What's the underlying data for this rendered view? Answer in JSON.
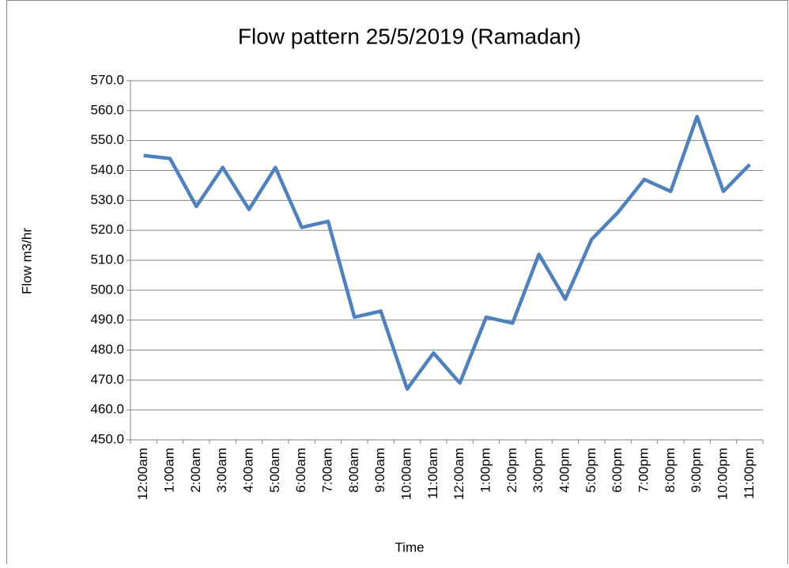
{
  "chart_data": {
    "type": "line",
    "title": "Flow pattern 25/5/2019 (Ramadan)",
    "x_label": "Time",
    "y_label": "Flow m3/hr",
    "categories": [
      "12:00am",
      "1:00am",
      "2:00am",
      "3:00am",
      "4:00am",
      "5:00am",
      "6:00am",
      "7:00am",
      "8:00am",
      "9:00am",
      "10:00am",
      "11:00am",
      "12:00am",
      "1:00pm",
      "2:00pm",
      "3:00pm",
      "4:00pm",
      "5:00pm",
      "6:00pm",
      "7:00pm",
      "8:00pm",
      "9:00pm",
      "10:00pm",
      "11:00pm"
    ],
    "values": [
      545,
      544,
      528,
      541,
      527,
      541,
      521,
      523,
      491,
      493,
      467,
      479,
      469,
      491,
      489,
      512,
      497,
      517,
      526,
      537,
      533,
      558,
      533,
      542
    ],
    "color": "#4f81bd",
    "ylim": [
      450,
      570
    ],
    "yticks": [
      {
        "value": 450,
        "label": "450.0"
      },
      {
        "value": 460,
        "label": "460.0"
      },
      {
        "value": 470,
        "label": "470.0"
      },
      {
        "value": 480,
        "label": "480.0"
      },
      {
        "value": 490,
        "label": "490.0"
      },
      {
        "value": 500,
        "label": "500.0"
      },
      {
        "value": 510,
        "label": "510.0"
      },
      {
        "value": 520,
        "label": "520.0"
      },
      {
        "value": 530,
        "label": "530.0"
      },
      {
        "value": 540,
        "label": "540.0"
      },
      {
        "value": 550,
        "label": "550.0"
      },
      {
        "value": 560,
        "label": "560.0"
      },
      {
        "value": 570,
        "label": "570.0"
      }
    ],
    "grid": true
  }
}
